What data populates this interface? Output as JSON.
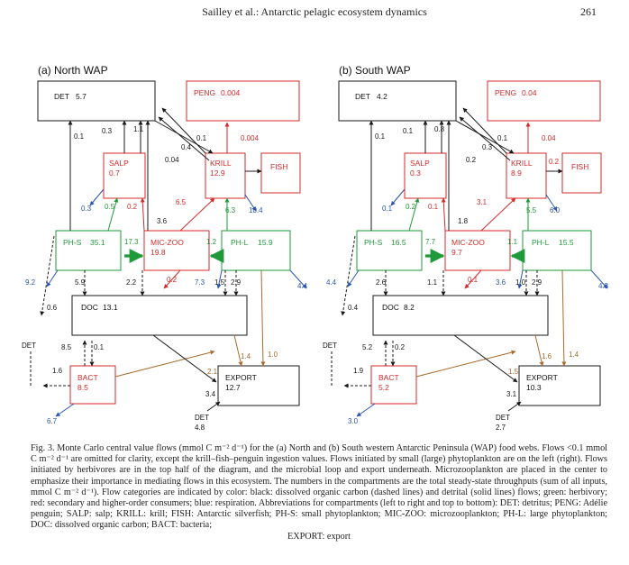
{
  "header": {
    "running_title": "Sailley et al.: Antarctic pelagic ecosystem dynamics",
    "page_number": "261"
  },
  "colors": {
    "black": "#1a1a1a",
    "red": "#d42a2a",
    "green": "#1f9a3a",
    "blue": "#2a55b0",
    "brown": "#a86a2e"
  },
  "panels": [
    {
      "title": "(a) North WAP",
      "boxes": {
        "DET": {
          "name": "DET",
          "value": "5.7"
        },
        "PENG": {
          "name": "PENG",
          "value": "0.004"
        },
        "SALP": {
          "name": "SALP",
          "value": "0.7"
        },
        "KRILL": {
          "name": "KRILL",
          "value": "12.9"
        },
        "FISH": {
          "name": "FISH",
          "value": ""
        },
        "PHS": {
          "name": "PH-S",
          "value": "35.1"
        },
        "MICZOO": {
          "name": "MIC-ZOO",
          "value": "19.8"
        },
        "PHL": {
          "name": "PH-L",
          "value": "15.9"
        },
        "DOC": {
          "name": "DOC",
          "value": "13.1"
        },
        "BACT": {
          "name": "BACT",
          "value": "8.5"
        },
        "EXPORT": {
          "name": "EXPORT",
          "value": "12.7"
        }
      },
      "flows": {
        "phs_det": "0.1",
        "salp_det_a": "0.3",
        "salp_det_b": "1.1",
        "krill_det_a": "0.1",
        "krill_det_b": "0.4",
        "krill_det_c": "0.04",
        "krill_peng": "0.004",
        "krill_fish": "",
        "salp_resp": "0.3",
        "phs_salp": "0.5",
        "miczoo_salp": "0.2",
        "miczoo_krill": "6.5",
        "phl_krill": "6.3",
        "krill_resp": "10.4",
        "miczoo_det": "3.6",
        "phs_miczoo": "17.3",
        "phl_miczoo": "1.2",
        "phs_resp": "9.2",
        "phs_doc": "5.9",
        "miczoo_doc": "2.2",
        "miczoo_resp_a": "0.2",
        "miczoo_resp_b": "7.3",
        "phl_doc_a": "1.5",
        "phl_doc_b": "2.9",
        "phl_resp": "4.4",
        "det_doc": "0.6",
        "doc_export_a": "1.4",
        "doc_export_b": "1.0",
        "bact_doc_a": "8.5",
        "bact_doc_b": "0.1",
        "bact_det": "1.6",
        "bact_export": "2.1",
        "det_export": "3.4",
        "bact_resp": "6.7",
        "det_bottom_name": "DET",
        "det_bottom_value": "4.8"
      }
    },
    {
      "title": "(b) South WAP",
      "boxes": {
        "DET": {
          "name": "DET",
          "value": "4.2"
        },
        "PENG": {
          "name": "PENG",
          "value": "0.04"
        },
        "SALP": {
          "name": "SALP",
          "value": "0.3"
        },
        "KRILL": {
          "name": "KRILL",
          "value": "8.9"
        },
        "FISH": {
          "name": "FISH",
          "value": ""
        },
        "PHS": {
          "name": "PH-S",
          "value": "16.5"
        },
        "MICZOO": {
          "name": "MIC-ZOO",
          "value": "9.7"
        },
        "PHL": {
          "name": "PH-L",
          "value": "15.5"
        },
        "DOC": {
          "name": "DOC",
          "value": "8.2"
        },
        "BACT": {
          "name": "BACT",
          "value": "5.2"
        },
        "EXPORT": {
          "name": "EXPORT",
          "value": "10.3"
        }
      },
      "flows": {
        "phs_det": "0.1",
        "salp_det_a": "0.1",
        "salp_det_b": "0.8",
        "krill_det_a": "0.1",
        "krill_det_b": "0.3",
        "krill_det_c": "0.2",
        "krill_peng": "0.04",
        "krill_fish": "0.2",
        "salp_resp": "0.1",
        "phs_salp": "0.2",
        "miczoo_salp": "0.1",
        "miczoo_krill": "3.1",
        "phl_krill": "5.5",
        "krill_resp": "6.0",
        "miczoo_det": "1.8",
        "phs_miczoo": "7.7",
        "phl_miczoo": "1.1",
        "phs_resp": "4.4",
        "phs_doc": "2.6",
        "miczoo_doc": "1.1",
        "miczoo_resp_a": "0.1",
        "miczoo_resp_b": "3.6",
        "phl_doc_a": "1.0",
        "phl_doc_b": "2.9",
        "phl_resp": "4.3",
        "det_doc": "0.4",
        "doc_export_a": "1.6",
        "doc_export_b": "1.4",
        "bact_doc_a": "5.2",
        "bact_doc_b": "0.2",
        "bact_det": "1.9",
        "bact_export": "1.5",
        "det_export": "3.1",
        "bact_resp": "3.0",
        "det_bottom_name": "DET",
        "det_bottom_value": "2.7"
      }
    }
  ],
  "caption": {
    "text": "Fig. 3. Monte Carlo central value flows (mmol C m⁻² d⁻¹) for the (a) North and (b) South western Antarctic Peninsula (WAP) food webs. Flows <0.1 mmol C m⁻² d⁻¹ are omitted for clarity, except the krill–fish–penguin ingestion values. Flows initiated by small (large) phytoplankton are on the left (right). Flows initiated by herbivores are in the top half of the diagram, and the microbial loop and export underneath. Microzooplankton are placed in the center to emphasize their importance in mediating flows in this ecosystem. The numbers in the compartments are the total steady-state throughputs (sum of all inputs, mmol C m⁻² d⁻¹). Flow categories are indicated by color: black: dissolved organic carbon (dashed lines) and detrital (solid lines) flows; green: herbivory; red: secondary and higher-order consumers; blue: respiration. Abbreviations for compartments (left to right and top to bottom): DET: detritus; PENG: Adélie penguin; SALP: salp; KRILL: krill; FISH: Antarctic silverfish; PH-S: small phytoplankton; MIC-ZOO: microzooplankton; PH-L: large phytoplankton; DOC: dissolved organic carbon; BACT: bacteria;",
    "last_line": "EXPORT: export"
  }
}
